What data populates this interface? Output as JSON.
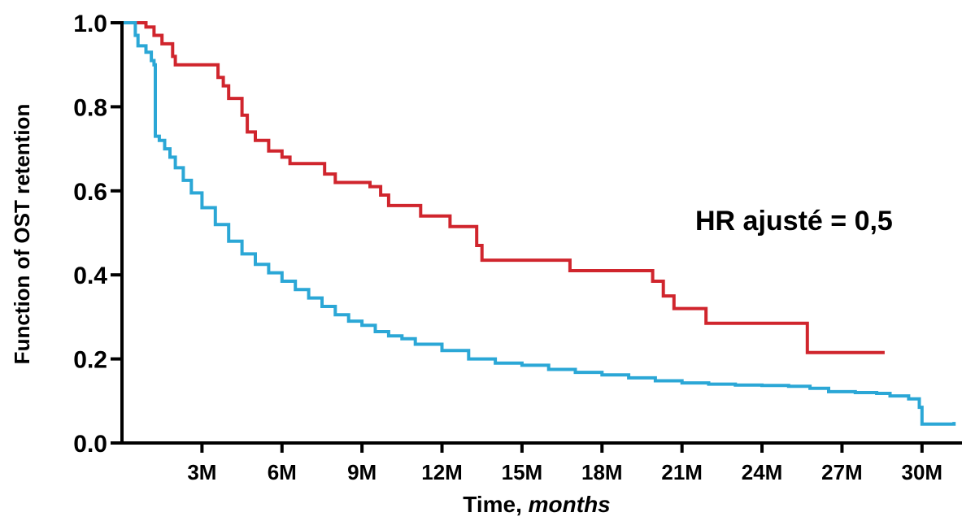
{
  "chart_data": {
    "type": "line",
    "subtype": "kaplan-meier-step",
    "xlabel": "Time, ",
    "xlabel_italic": "months",
    "ylabel": "Function of OST retention",
    "xlim": [
      0,
      31.5
    ],
    "ylim": [
      0,
      1.0
    ],
    "x_ticks": [
      {
        "value": 3,
        "label": "3M"
      },
      {
        "value": 6,
        "label": "6M"
      },
      {
        "value": 9,
        "label": "9M"
      },
      {
        "value": 12,
        "label": "12M"
      },
      {
        "value": 15,
        "label": "15M"
      },
      {
        "value": 18,
        "label": "18M"
      },
      {
        "value": 21,
        "label": "21M"
      },
      {
        "value": 24,
        "label": "24M"
      },
      {
        "value": 27,
        "label": "27M"
      },
      {
        "value": 30,
        "label": "30M"
      }
    ],
    "y_ticks": [
      {
        "value": 0.0,
        "label": "0.0"
      },
      {
        "value": 0.2,
        "label": "0.2"
      },
      {
        "value": 0.4,
        "label": "0.4"
      },
      {
        "value": 0.6,
        "label": "0.6"
      },
      {
        "value": 0.8,
        "label": "0.8"
      },
      {
        "value": 1.0,
        "label": "1.0"
      }
    ],
    "grid": false,
    "annotation": "HR ajusté = 0,5",
    "series": [
      {
        "color": "#d0252d",
        "step": true,
        "points": [
          [
            0.0,
            1.0
          ],
          [
            0.9,
            1.0
          ],
          [
            0.9,
            0.99
          ],
          [
            1.2,
            0.99
          ],
          [
            1.2,
            0.97
          ],
          [
            1.5,
            0.97
          ],
          [
            1.5,
            0.95
          ],
          [
            1.9,
            0.95
          ],
          [
            1.9,
            0.92
          ],
          [
            2.0,
            0.92
          ],
          [
            2.0,
            0.9
          ],
          [
            3.6,
            0.9
          ],
          [
            3.6,
            0.87
          ],
          [
            3.8,
            0.87
          ],
          [
            3.8,
            0.85
          ],
          [
            4.0,
            0.85
          ],
          [
            4.0,
            0.82
          ],
          [
            4.5,
            0.82
          ],
          [
            4.5,
            0.78
          ],
          [
            4.7,
            0.78
          ],
          [
            4.7,
            0.74
          ],
          [
            5.0,
            0.74
          ],
          [
            5.0,
            0.72
          ],
          [
            5.5,
            0.72
          ],
          [
            5.5,
            0.695
          ],
          [
            6.0,
            0.695
          ],
          [
            6.0,
            0.68
          ],
          [
            6.3,
            0.68
          ],
          [
            6.3,
            0.665
          ],
          [
            7.6,
            0.665
          ],
          [
            7.6,
            0.64
          ],
          [
            8.0,
            0.64
          ],
          [
            8.0,
            0.62
          ],
          [
            9.3,
            0.62
          ],
          [
            9.3,
            0.61
          ],
          [
            9.7,
            0.61
          ],
          [
            9.7,
            0.59
          ],
          [
            10.0,
            0.59
          ],
          [
            10.0,
            0.565
          ],
          [
            11.2,
            0.565
          ],
          [
            11.2,
            0.54
          ],
          [
            12.3,
            0.54
          ],
          [
            12.3,
            0.515
          ],
          [
            13.3,
            0.515
          ],
          [
            13.3,
            0.47
          ],
          [
            13.5,
            0.47
          ],
          [
            13.5,
            0.435
          ],
          [
            16.8,
            0.435
          ],
          [
            16.8,
            0.41
          ],
          [
            19.9,
            0.41
          ],
          [
            19.9,
            0.385
          ],
          [
            20.3,
            0.385
          ],
          [
            20.3,
            0.35
          ],
          [
            20.7,
            0.35
          ],
          [
            20.7,
            0.32
          ],
          [
            21.9,
            0.32
          ],
          [
            21.9,
            0.285
          ],
          [
            25.7,
            0.285
          ],
          [
            25.7,
            0.215
          ],
          [
            28.6,
            0.215
          ]
        ]
      },
      {
        "color": "#2ba7d6",
        "step": true,
        "points": [
          [
            0.0,
            1.0
          ],
          [
            0.3,
            1.0
          ],
          [
            0.5,
            0.97
          ],
          [
            0.6,
            0.945
          ],
          [
            0.9,
            0.93
          ],
          [
            1.1,
            0.91
          ],
          [
            1.2,
            0.9
          ],
          [
            1.25,
            0.73
          ],
          [
            1.4,
            0.72
          ],
          [
            1.6,
            0.7
          ],
          [
            1.8,
            0.68
          ],
          [
            2.0,
            0.655
          ],
          [
            2.3,
            0.625
          ],
          [
            2.6,
            0.595
          ],
          [
            3.0,
            0.56
          ],
          [
            3.5,
            0.52
          ],
          [
            4.0,
            0.48
          ],
          [
            4.5,
            0.45
          ],
          [
            5.0,
            0.425
          ],
          [
            5.5,
            0.405
          ],
          [
            6.0,
            0.385
          ],
          [
            6.5,
            0.365
          ],
          [
            7.0,
            0.345
          ],
          [
            7.5,
            0.325
          ],
          [
            8.0,
            0.305
          ],
          [
            8.5,
            0.29
          ],
          [
            9.0,
            0.28
          ],
          [
            9.5,
            0.265
          ],
          [
            10.0,
            0.255
          ],
          [
            10.5,
            0.248
          ],
          [
            11.0,
            0.235
          ],
          [
            12.0,
            0.22
          ],
          [
            13.0,
            0.2
          ],
          [
            14.0,
            0.19
          ],
          [
            15.0,
            0.185
          ],
          [
            16.0,
            0.175
          ],
          [
            17.0,
            0.168
          ],
          [
            18.0,
            0.162
          ],
          [
            19.0,
            0.155
          ],
          [
            20.0,
            0.148
          ],
          [
            21.0,
            0.143
          ],
          [
            22.0,
            0.14
          ],
          [
            23.0,
            0.138
          ],
          [
            24.0,
            0.137
          ],
          [
            25.0,
            0.135
          ],
          [
            25.8,
            0.13
          ],
          [
            26.5,
            0.122
          ],
          [
            27.5,
            0.12
          ],
          [
            28.3,
            0.118
          ],
          [
            28.8,
            0.112
          ],
          [
            29.5,
            0.105
          ],
          [
            29.9,
            0.085
          ],
          [
            30.0,
            0.045
          ],
          [
            30.2,
            0.045
          ],
          [
            31.2,
            0.045
          ],
          [
            31.2,
            0.05
          ]
        ]
      }
    ]
  }
}
